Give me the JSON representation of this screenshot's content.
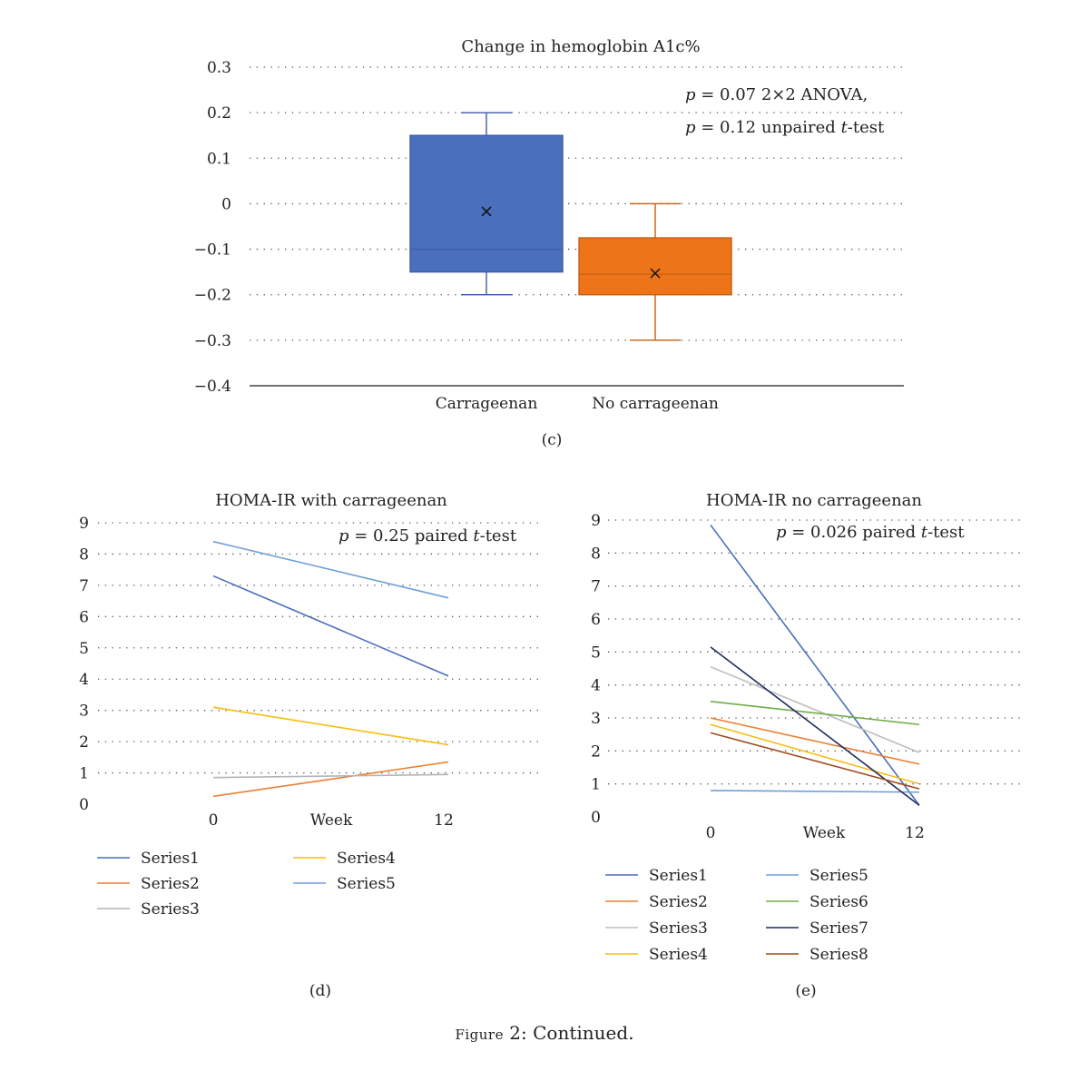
{
  "figure_caption": {
    "prefix": "Figure",
    "rest": " 2: Continued."
  },
  "chart_data": [
    {
      "panel": "(c)",
      "type": "box",
      "title": "Change in hemoglobin A1c%",
      "annotation": [
        "= 0.07 2×2 ANOVA,",
        "= 0.12 unpaired",
        "-test"
      ],
      "ylim": [
        -0.4,
        0.3
      ],
      "yticks": [
        "0.3",
        "0.2",
        "0.1",
        "0",
        "−0.1",
        "−0.2",
        "−0.3",
        "−0.4"
      ],
      "grid": true,
      "categories": [
        "Carrageenan",
        "No carrageenan"
      ],
      "boxes": [
        {
          "name": "Carrageenan",
          "min": -0.2,
          "q1": -0.15,
          "median": -0.1,
          "q3": 0.15,
          "max": 0.2,
          "mean": -0.017,
          "color": "#4a6fbd"
        },
        {
          "name": "No carrageenan",
          "min": -0.3,
          "q1": -0.2,
          "median": -0.155,
          "q3": -0.075,
          "max": 0.0,
          "mean": -0.153,
          "color": "#ed7418"
        }
      ]
    },
    {
      "panel": "(d)",
      "type": "line",
      "title": "HOMA-IR with carrageenan",
      "annotation": [
        "= 0.25 paired",
        "-test"
      ],
      "ylim": [
        0,
        9
      ],
      "yticks": [
        "9",
        "8",
        "7",
        "6",
        "5",
        "4",
        "3",
        "2",
        "1",
        "0"
      ],
      "x": [
        "0",
        "12"
      ],
      "xlabel": "Week",
      "grid": true,
      "legend": "bottom",
      "series": [
        {
          "name": "Series1",
          "color": "#4a6fbd",
          "values": [
            7.3,
            4.1
          ]
        },
        {
          "name": "Series2",
          "color": "#ed7d31",
          "values": [
            0.25,
            1.35
          ]
        },
        {
          "name": "Series3",
          "color": "#b4b4b4",
          "values": [
            0.85,
            0.95
          ]
        },
        {
          "name": "Series4",
          "color": "#f5bd10",
          "values": [
            3.1,
            1.9
          ]
        },
        {
          "name": "Series5",
          "color": "#6f9fd8",
          "values": [
            8.4,
            6.6
          ]
        }
      ]
    },
    {
      "panel": "(e)",
      "type": "line",
      "title": "HOMA-IR no carrageenan",
      "annotation": [
        "= 0.026 paired",
        "-test"
      ],
      "ylim": [
        0,
        9
      ],
      "yticks": [
        "9",
        "8",
        "7",
        "6",
        "5",
        "4",
        "3",
        "2",
        "1",
        "0"
      ],
      "x": [
        "0",
        "12"
      ],
      "xlabel": "Week",
      "grid": true,
      "legend": "bottom",
      "series": [
        {
          "name": "Series1",
          "color": "#4a6fbd",
          "values": [
            8.85,
            0.35
          ]
        },
        {
          "name": "Series2",
          "color": "#ed7d31",
          "values": [
            3.0,
            1.6
          ]
        },
        {
          "name": "Series3",
          "color": "#bdbdbd",
          "values": [
            4.55,
            1.95
          ]
        },
        {
          "name": "Series4",
          "color": "#f5bd10",
          "values": [
            2.8,
            1.0
          ]
        },
        {
          "name": "Series5",
          "color": "#6f9fd8",
          "values": [
            0.8,
            0.75
          ]
        },
        {
          "name": "Series6",
          "color": "#70ad47",
          "values": [
            3.5,
            2.8
          ]
        },
        {
          "name": "Series7",
          "color": "#1f2a5c",
          "values": [
            5.15,
            0.35
          ]
        },
        {
          "name": "Series8",
          "color": "#9e4a1c",
          "values": [
            2.55,
            0.85
          ]
        }
      ]
    }
  ]
}
